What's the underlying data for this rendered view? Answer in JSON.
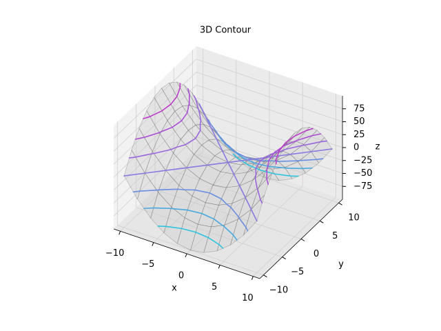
{
  "chart_data": {
    "type": "contour3d",
    "title": "3D Contour",
    "x_label": "x",
    "y_label": "y",
    "z_label": "z",
    "x": [
      -10,
      -8,
      -6,
      -4,
      -2,
      0,
      2,
      4,
      6,
      8,
      10
    ],
    "y": [
      -10,
      -8,
      -6,
      -4,
      -2,
      0,
      2,
      4,
      6,
      8,
      10
    ],
    "z": [
      [
        0,
        -36,
        -64,
        -84,
        -96,
        -100,
        -96,
        -84,
        -64,
        -36,
        0
      ],
      [
        36,
        0,
        -28,
        -48,
        -60,
        -64,
        -60,
        -48,
        -28,
        0,
        36
      ],
      [
        64,
        28,
        0,
        -20,
        -32,
        -36,
        -32,
        -20,
        0,
        28,
        64
      ],
      [
        84,
        48,
        20,
        0,
        -12,
        -16,
        -12,
        0,
        20,
        48,
        84
      ],
      [
        96,
        60,
        32,
        12,
        0,
        -4,
        0,
        12,
        32,
        60,
        96
      ],
      [
        100,
        64,
        36,
        16,
        4,
        0,
        4,
        16,
        36,
        64,
        100
      ],
      [
        96,
        60,
        32,
        12,
        0,
        -4,
        0,
        12,
        32,
        60,
        96
      ],
      [
        84,
        48,
        20,
        0,
        -12,
        -16,
        -12,
        0,
        20,
        48,
        84
      ],
      [
        64,
        28,
        0,
        -20,
        -32,
        -36,
        -32,
        -20,
        0,
        28,
        64
      ],
      [
        36,
        0,
        -28,
        -48,
        -60,
        -64,
        -60,
        -48,
        -28,
        0,
        36
      ],
      [
        0,
        -36,
        -64,
        -84,
        -96,
        -100,
        -96,
        -84,
        -64,
        -36,
        0
      ]
    ],
    "levels": [
      -75,
      -50,
      -25,
      0,
      25,
      50,
      75
    ],
    "level_colors": [
      "#2ec4e0",
      "#4aa8e0",
      "#6a8ee0",
      "#8a78e0",
      "#9a66dc",
      "#aa50d4",
      "#bc3cc8"
    ],
    "xlim": [
      -11,
      11
    ],
    "ylim": [
      -11,
      11
    ],
    "zlim": [
      -100,
      100
    ],
    "xticks": [
      {
        "value": -10,
        "label": "−10"
      },
      {
        "value": -5,
        "label": "−5"
      },
      0,
      5,
      10
    ],
    "yticks": [
      {
        "value": -10,
        "label": "−10"
      },
      {
        "value": -5,
        "label": "−5"
      },
      0,
      5,
      10
    ],
    "zticks": [
      {
        "value": -75,
        "label": "−75"
      },
      {
        "value": -50,
        "label": "−50"
      },
      {
        "value": -25,
        "label": "−25"
      },
      0,
      25,
      50,
      75
    ],
    "grid": true
  }
}
